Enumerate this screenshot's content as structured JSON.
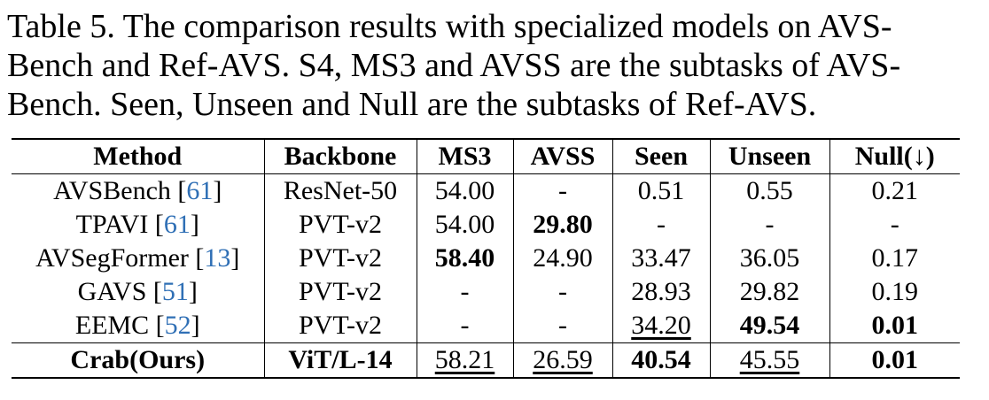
{
  "caption": {
    "line1": "Table 5. The comparison results with specialized models on AVS-",
    "line2": "Bench and Ref-AVS. S4, MS3 and AVSS are the subtasks of AVS-",
    "line3": "Bench. Seen, Unseen and Null are the subtasks of Ref-AVS."
  },
  "table": {
    "headers": [
      "Method",
      "Backbone",
      "MS3",
      "AVSS",
      "Seen",
      "Unseen",
      "Null(↓)"
    ],
    "rows": [
      {
        "method": "AVSBench",
        "ref": "61",
        "backbone": "ResNet-50",
        "ms3": "54.00",
        "avss": "-",
        "seen": "0.51",
        "unseen": "0.55",
        "null": "0.21"
      },
      {
        "method": "TPAVI",
        "ref": "61",
        "backbone": "PVT-v2",
        "ms3": "54.00",
        "avss": "29.80",
        "seen": "-",
        "unseen": "-",
        "null": "-"
      },
      {
        "method": "AVSegFormer",
        "ref": "13",
        "backbone": "PVT-v2",
        "ms3": "58.40",
        "avss": "24.90",
        "seen": "33.47",
        "unseen": "36.05",
        "null": "0.17"
      },
      {
        "method": "GAVS",
        "ref": "51",
        "backbone": "PVT-v2",
        "ms3": "-",
        "avss": "-",
        "seen": "28.93",
        "unseen": "29.82",
        "null": "0.19"
      },
      {
        "method": "EEMC",
        "ref": "52",
        "backbone": "PVT-v2",
        "ms3": "-",
        "avss": "-",
        "seen": "34.20",
        "unseen": "49.54",
        "null": "0.01"
      },
      {
        "method": "Crab(Ours)",
        "ref": "",
        "backbone": "ViT/L-14",
        "ms3": "58.21",
        "avss": "26.59",
        "seen": "40.54",
        "unseen": "45.55",
        "null": "0.01"
      }
    ]
  }
}
